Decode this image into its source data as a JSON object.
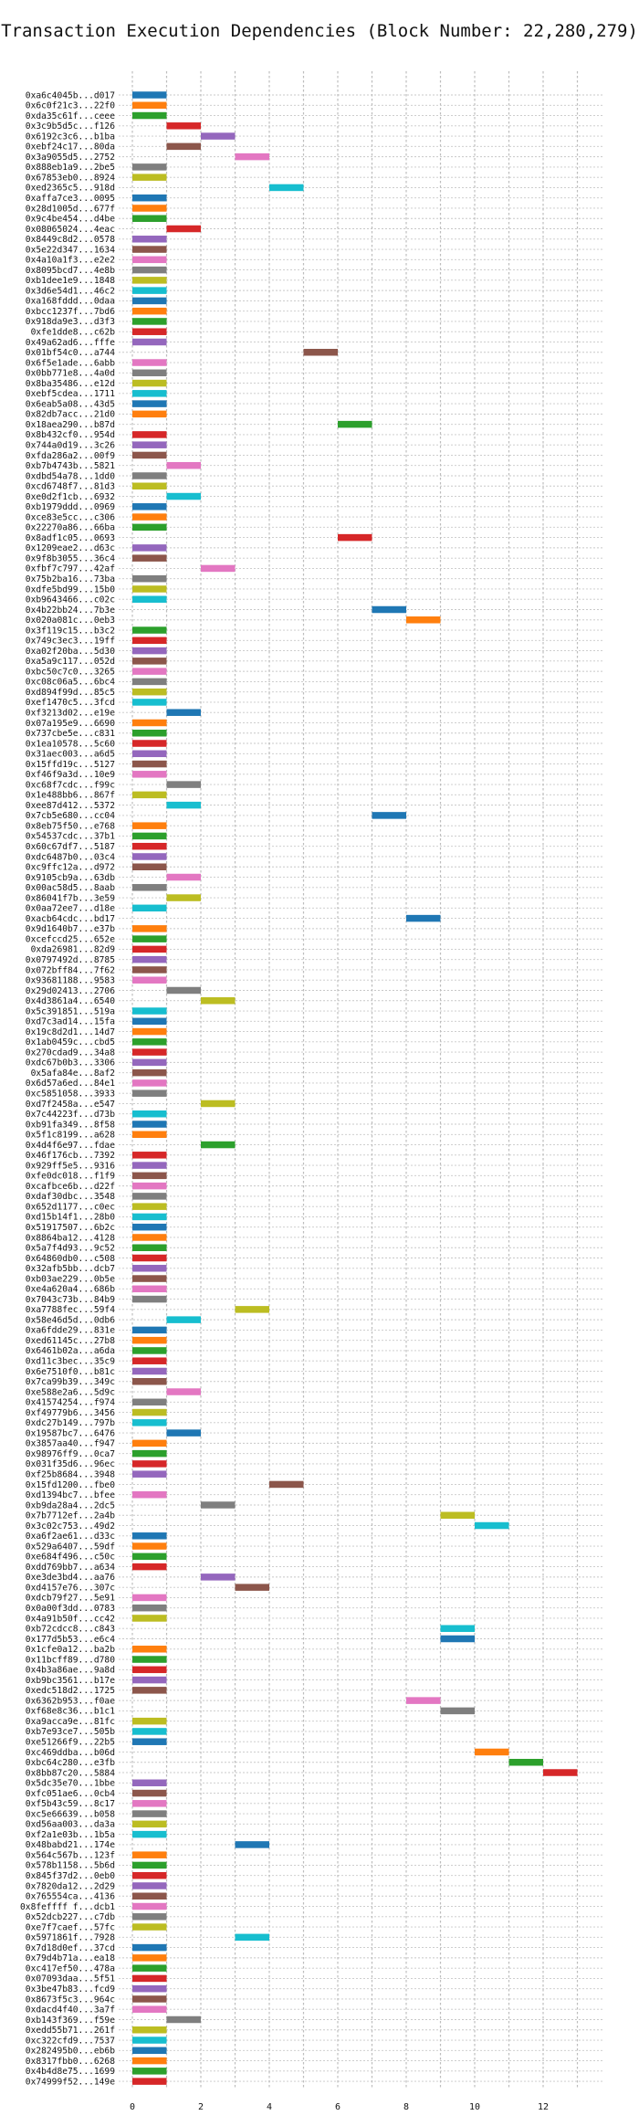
{
  "chart_data": {
    "type": "bar",
    "orientation": "horizontal-gantt",
    "title": "Transaction Execution Dependencies (Block Number: 22,280,279)",
    "xlabel": "",
    "ylabel": "",
    "xlim": [
      -0.4,
      13.8
    ],
    "xticks": [
      0,
      2,
      4,
      6,
      8,
      10,
      12
    ],
    "grid": true,
    "palette": [
      "#1f77b4",
      "#ff7f0e",
      "#2ca02c",
      "#d62728",
      "#9467bd",
      "#8c564b",
      "#e377c2",
      "#7f7f7f",
      "#bcbd22",
      "#17becf"
    ],
    "transactions": [
      {
        "label": "0xa6c4045b...d017",
        "start": 0
      },
      {
        "label": "0x6c0f21c3...22f0",
        "start": 0
      },
      {
        "label": "0xda35c61f...ceee",
        "start": 0
      },
      {
        "label": "0x3c9b5d5c...f126",
        "start": 1
      },
      {
        "label": "0x6192c3c6...b1ba",
        "start": 2
      },
      {
        "label": "0xebf24c17...80da",
        "start": 1
      },
      {
        "label": "0x3a9055d5...2752",
        "start": 3
      },
      {
        "label": "0x888eb1a9...2be5",
        "start": 0
      },
      {
        "label": "0x67853eb0...8924",
        "start": 0
      },
      {
        "label": "0xed2365c5...918d",
        "start": 4
      },
      {
        "label": "0xaffa7ce3...0095",
        "start": 0
      },
      {
        "label": "0x28d1005d...677f",
        "start": 0
      },
      {
        "label": "0x9c4be454...d4be",
        "start": 0
      },
      {
        "label": "0x08065024...4eac",
        "start": 1
      },
      {
        "label": "0x8449c8d2...0578",
        "start": 0
      },
      {
        "label": "0x5e22d347...1634",
        "start": 0
      },
      {
        "label": "0x4a10a1f3...e2e2",
        "start": 0
      },
      {
        "label": "0x8095bcd7...4e8b",
        "start": 0
      },
      {
        "label": "0xb1dee1e9...1848",
        "start": 0
      },
      {
        "label": "0x3d6e54d1...46c2",
        "start": 0
      },
      {
        "label": "0xa168fddd...0daa",
        "start": 0
      },
      {
        "label": "0xbcc1237f...7bd6",
        "start": 0
      },
      {
        "label": "0x918da9e3...d3f3",
        "start": 0
      },
      {
        "label": "0xfe1dde8...c62b",
        "start": 0
      },
      {
        "label": "0x49a62ad6...fffe",
        "start": 0
      },
      {
        "label": "0x01bf54c0...a744",
        "start": 5
      },
      {
        "label": "0x6f5e1ade...6abb",
        "start": 0
      },
      {
        "label": "0x0bb771e8...4a0d",
        "start": 0
      },
      {
        "label": "0x8ba35486...e12d",
        "start": 0
      },
      {
        "label": "0xebf5cdea...1711",
        "start": 0
      },
      {
        "label": "0x6eab5a08...43d5",
        "start": 0
      },
      {
        "label": "0x82db7acc...21d0",
        "start": 0
      },
      {
        "label": "0x18aea290...b87d",
        "start": 6
      },
      {
        "label": "0x8b432cf0...954d",
        "start": 0
      },
      {
        "label": "0x744a0d19...3c26",
        "start": 0
      },
      {
        "label": "0xfda286a2...00f9",
        "start": 0
      },
      {
        "label": "0xb7b4743b...5821",
        "start": 1
      },
      {
        "label": "0xdbd54a78...1dd0",
        "start": 0
      },
      {
        "label": "0xcd6748f7...81d3",
        "start": 0
      },
      {
        "label": "0xe0d2f1cb...6932",
        "start": 1
      },
      {
        "label": "0xb1979ddd...0969",
        "start": 0
      },
      {
        "label": "0xce83e5cc...c306",
        "start": 0
      },
      {
        "label": "0x22270a86...66ba",
        "start": 0
      },
      {
        "label": "0x8adf1c05...0693",
        "start": 6
      },
      {
        "label": "0x1209eae2...d63c",
        "start": 0
      },
      {
        "label": "0x9f8b3055...36c4",
        "start": 0
      },
      {
        "label": "0xfbf7c797...42af",
        "start": 2
      },
      {
        "label": "0x75b2ba16...73ba",
        "start": 0
      },
      {
        "label": "0xdfe5bd99...15b0",
        "start": 0
      },
      {
        "label": "0xb9643466...c02c",
        "start": 0
      },
      {
        "label": "0x4b22bb24...7b3e",
        "start": 7
      },
      {
        "label": "0x020a081c...0eb3",
        "start": 8
      },
      {
        "label": "0x3f119c15...b3c2",
        "start": 0
      },
      {
        "label": "0x749c3ec3...19ff",
        "start": 0
      },
      {
        "label": "0xa02f20ba...5d30",
        "start": 0
      },
      {
        "label": "0xa5a9c117...052d",
        "start": 0
      },
      {
        "label": "0xbc50c7c0...3265",
        "start": 0
      },
      {
        "label": "0xc08c06a5...6bc4",
        "start": 0
      },
      {
        "label": "0xd894f99d...85c5",
        "start": 0
      },
      {
        "label": "0xef1470c5...3fcd",
        "start": 0
      },
      {
        "label": "0xf3213d02...e19e",
        "start": 1
      },
      {
        "label": "0x07a195e9...6690",
        "start": 0
      },
      {
        "label": "0x737cbe5e...c831",
        "start": 0
      },
      {
        "label": "0x1ea10578...5c60",
        "start": 0
      },
      {
        "label": "0x31aec003...a6d5",
        "start": 0
      },
      {
        "label": "0x15ffd19c...5127",
        "start": 0
      },
      {
        "label": "0xf46f9a3d...10e9",
        "start": 0
      },
      {
        "label": "0xc68f7cdc...f99c",
        "start": 1
      },
      {
        "label": "0x1e488bb6...867f",
        "start": 0
      },
      {
        "label": "0xee87d412...5372",
        "start": 1
      },
      {
        "label": "0x7cb5e680...cc04",
        "start": 7
      },
      {
        "label": "0x8eb75f50...e768",
        "start": 0
      },
      {
        "label": "0x54537cdc...37b1",
        "start": 0
      },
      {
        "label": "0x60c67df7...5187",
        "start": 0
      },
      {
        "label": "0xdc6487b0...03c4",
        "start": 0
      },
      {
        "label": "0xc9ffc12a...d972",
        "start": 0
      },
      {
        "label": "0x9105cb9a...63db",
        "start": 1
      },
      {
        "label": "0x00ac58d5...8aab",
        "start": 0
      },
      {
        "label": "0x86041f7b...3e59",
        "start": 1
      },
      {
        "label": "0x0aa72ee7...d18e",
        "start": 0
      },
      {
        "label": "0xacb64cdc...bd17",
        "start": 8
      },
      {
        "label": "0x9d1640b7...e37b",
        "start": 0
      },
      {
        "label": "0xcefccd25...652e",
        "start": 0
      },
      {
        "label": "0xda26981...82d9",
        "start": 0
      },
      {
        "label": "0x0797492d...8785",
        "start": 0
      },
      {
        "label": "0x072bff84...7f62",
        "start": 0
      },
      {
        "label": "0x93681188...9583",
        "start": 0
      },
      {
        "label": "0x29d02413...2706",
        "start": 1
      },
      {
        "label": "0x4d3861a4...6540",
        "start": 2
      },
      {
        "label": "0x5c391851...519a",
        "start": 0
      },
      {
        "label": "0xd7c3ad14...15fa",
        "start": 0
      },
      {
        "label": "0x19c8d2d1...14d7",
        "start": 0
      },
      {
        "label": "0x1ab0459c...cbd5",
        "start": 0
      },
      {
        "label": "0x270cdad9...34a8",
        "start": 0
      },
      {
        "label": "0xdc67b0b3...3306",
        "start": 0
      },
      {
        "label": "0x5afa84e...8af2",
        "start": 0
      },
      {
        "label": "0x6d57a6ed...84e1",
        "start": 0
      },
      {
        "label": "0xc5851058...3933",
        "start": 0
      },
      {
        "label": "0xd7f2458a...e547",
        "start": 2
      },
      {
        "label": "0x7c44223f...d73b",
        "start": 0
      },
      {
        "label": "0xb91fa349...8f58",
        "start": 0
      },
      {
        "label": "0x5f1c8199...a628",
        "start": 0
      },
      {
        "label": "0x4d4f6e97...fdae",
        "start": 2
      },
      {
        "label": "0x46f176cb...7392",
        "start": 0
      },
      {
        "label": "0x929ff5e5...9316",
        "start": 0
      },
      {
        "label": "0xfe0dc018...f1f9",
        "start": 0
      },
      {
        "label": "0xcafbce6b...d22f",
        "start": 0
      },
      {
        "label": "0xdaf30dbc...3548",
        "start": 0
      },
      {
        "label": "0x652d1177...c0ec",
        "start": 0
      },
      {
        "label": "0xd15b14f1...28b0",
        "start": 0
      },
      {
        "label": "0x51917507...6b2c",
        "start": 0
      },
      {
        "label": "0x8864ba12...4128",
        "start": 0
      },
      {
        "label": "0x5a7f4d93...9c52",
        "start": 0
      },
      {
        "label": "0x64860db0...c508",
        "start": 0
      },
      {
        "label": "0x32afb5bb...dcb7",
        "start": 0
      },
      {
        "label": "0xb03ae229...0b5e",
        "start": 0
      },
      {
        "label": "0xe4a620a4...686b",
        "start": 0
      },
      {
        "label": "0x7043c73b...84b9",
        "start": 0
      },
      {
        "label": "0xa7788fec...59f4",
        "start": 3
      },
      {
        "label": "0x58e46d5d...0db6",
        "start": 1
      },
      {
        "label": "0xa6fdde29...831e",
        "start": 0
      },
      {
        "label": "0xed61145c...27b8",
        "start": 0
      },
      {
        "label": "0x6461b02a...a6da",
        "start": 0
      },
      {
        "label": "0xd11c3bec...35c9",
        "start": 0
      },
      {
        "label": "0x6e7510f0...b81c",
        "start": 0
      },
      {
        "label": "0x7ca99b39...349c",
        "start": 0
      },
      {
        "label": "0xe588e2a6...5d9c",
        "start": 1
      },
      {
        "label": "0x41574254...f974",
        "start": 0
      },
      {
        "label": "0xf49779b6...3456",
        "start": 0
      },
      {
        "label": "0xdc27b149...797b",
        "start": 0
      },
      {
        "label": "0x19587bc7...6476",
        "start": 1
      },
      {
        "label": "0x3857aa40...f947",
        "start": 0
      },
      {
        "label": "0x98976ff9...0ca7",
        "start": 0
      },
      {
        "label": "0x031f35d6...96ec",
        "start": 0
      },
      {
        "label": "0xf25b8684...3948",
        "start": 0
      },
      {
        "label": "0x15fd1200...fbe0",
        "start": 4
      },
      {
        "label": "0xd1394bc7...bfee",
        "start": 0
      },
      {
        "label": "0xb9da28a4...2dc5",
        "start": 2
      },
      {
        "label": "0x7b7712ef...2a4b",
        "start": 9
      },
      {
        "label": "0x3c02c753...49d2",
        "start": 10
      },
      {
        "label": "0xa6f2ae61...d33c",
        "start": 0
      },
      {
        "label": "0x529a6407...59df",
        "start": 0
      },
      {
        "label": "0xe684f496...c50c",
        "start": 0
      },
      {
        "label": "0xdd769bb7...a634",
        "start": 0
      },
      {
        "label": "0xe3de3bd4...aa76",
        "start": 2
      },
      {
        "label": "0xd4157e76...307c",
        "start": 3
      },
      {
        "label": "0xdcb79f27...5e91",
        "start": 0
      },
      {
        "label": "0x0a00f3dd...0783",
        "start": 0
      },
      {
        "label": "0x4a91b50f...cc42",
        "start": 0
      },
      {
        "label": "0xb72cdcc8...c843",
        "start": 9
      },
      {
        "label": "0x177d5b53...e6c4",
        "start": 9
      },
      {
        "label": "0x1cfe0a12...ba2b",
        "start": 0
      },
      {
        "label": "0x11bcff89...d780",
        "start": 0
      },
      {
        "label": "0x4b3a86ae...9a8d",
        "start": 0
      },
      {
        "label": "0xb9bc3561...b17e",
        "start": 0
      },
      {
        "label": "0xedc518d2...1725",
        "start": 0
      },
      {
        "label": "0x6362b953...f0ae",
        "start": 8
      },
      {
        "label": "0xf68e8c36...b1c1",
        "start": 9
      },
      {
        "label": "0xa9acca9e...81fc",
        "start": 0
      },
      {
        "label": "0xb7e93ce7...505b",
        "start": 0
      },
      {
        "label": "0xe51266f9...22b5",
        "start": 0
      },
      {
        "label": "0xc469ddba...b06d",
        "start": 10
      },
      {
        "label": "0xbc64c280...e3fb",
        "start": 11
      },
      {
        "label": "0x8bb87c20...5884",
        "start": 12
      },
      {
        "label": "0x5dc35e70...1bbe",
        "start": 0
      },
      {
        "label": "0xfc051ae6...0cb4",
        "start": 0
      },
      {
        "label": "0xf5b43c59...8c17",
        "start": 0
      },
      {
        "label": "0xc5e66639...b058",
        "start": 0
      },
      {
        "label": "0xd56aa003...da3a",
        "start": 0
      },
      {
        "label": "0xf2a1e03b...1b5a",
        "start": 0
      },
      {
        "label": "0x48babd21...174e",
        "start": 3
      },
      {
        "label": "0x564c567b...123f",
        "start": 0
      },
      {
        "label": "0x578b1158...5b6d",
        "start": 0
      },
      {
        "label": "0x845f37d2...0eb0",
        "start": 0
      },
      {
        "label": "0x7820da12...2d29",
        "start": 0
      },
      {
        "label": "0x765554ca...4136",
        "start": 0
      },
      {
        "label": "0x8feffff f...dcb1",
        "start": 0
      },
      {
        "label": "0x52dcb227...c7db",
        "start": 0
      },
      {
        "label": "0xe7f7caef...57fc",
        "start": 0
      },
      {
        "label": "0x5971861f...7928",
        "start": 3
      },
      {
        "label": "0x7d18d0ef...37cd",
        "start": 0
      },
      {
        "label": "0x79d4b71a...ea18",
        "start": 0
      },
      {
        "label": "0xc417ef50...478a",
        "start": 0
      },
      {
        "label": "0x07093daa...5f51",
        "start": 0
      },
      {
        "label": "0x3be47b83...fcd9",
        "start": 0
      },
      {
        "label": "0x8673f5c3...964c",
        "start": 0
      },
      {
        "label": "0xdacd4f40...3a7f",
        "start": 0
      },
      {
        "label": "0xb143f369...f59e",
        "start": 1
      },
      {
        "label": "0xedd55b71...261f",
        "start": 0
      },
      {
        "label": "0xc322cfd9...7537",
        "start": 0
      },
      {
        "label": "0x282495b0...eb6b",
        "start": 0
      },
      {
        "label": "0x8317fbb0...6268",
        "start": 0
      },
      {
        "label": "0x4b4d8e75...1699",
        "start": 0
      },
      {
        "label": "0x74999f52...149e",
        "start": 0
      }
    ]
  }
}
